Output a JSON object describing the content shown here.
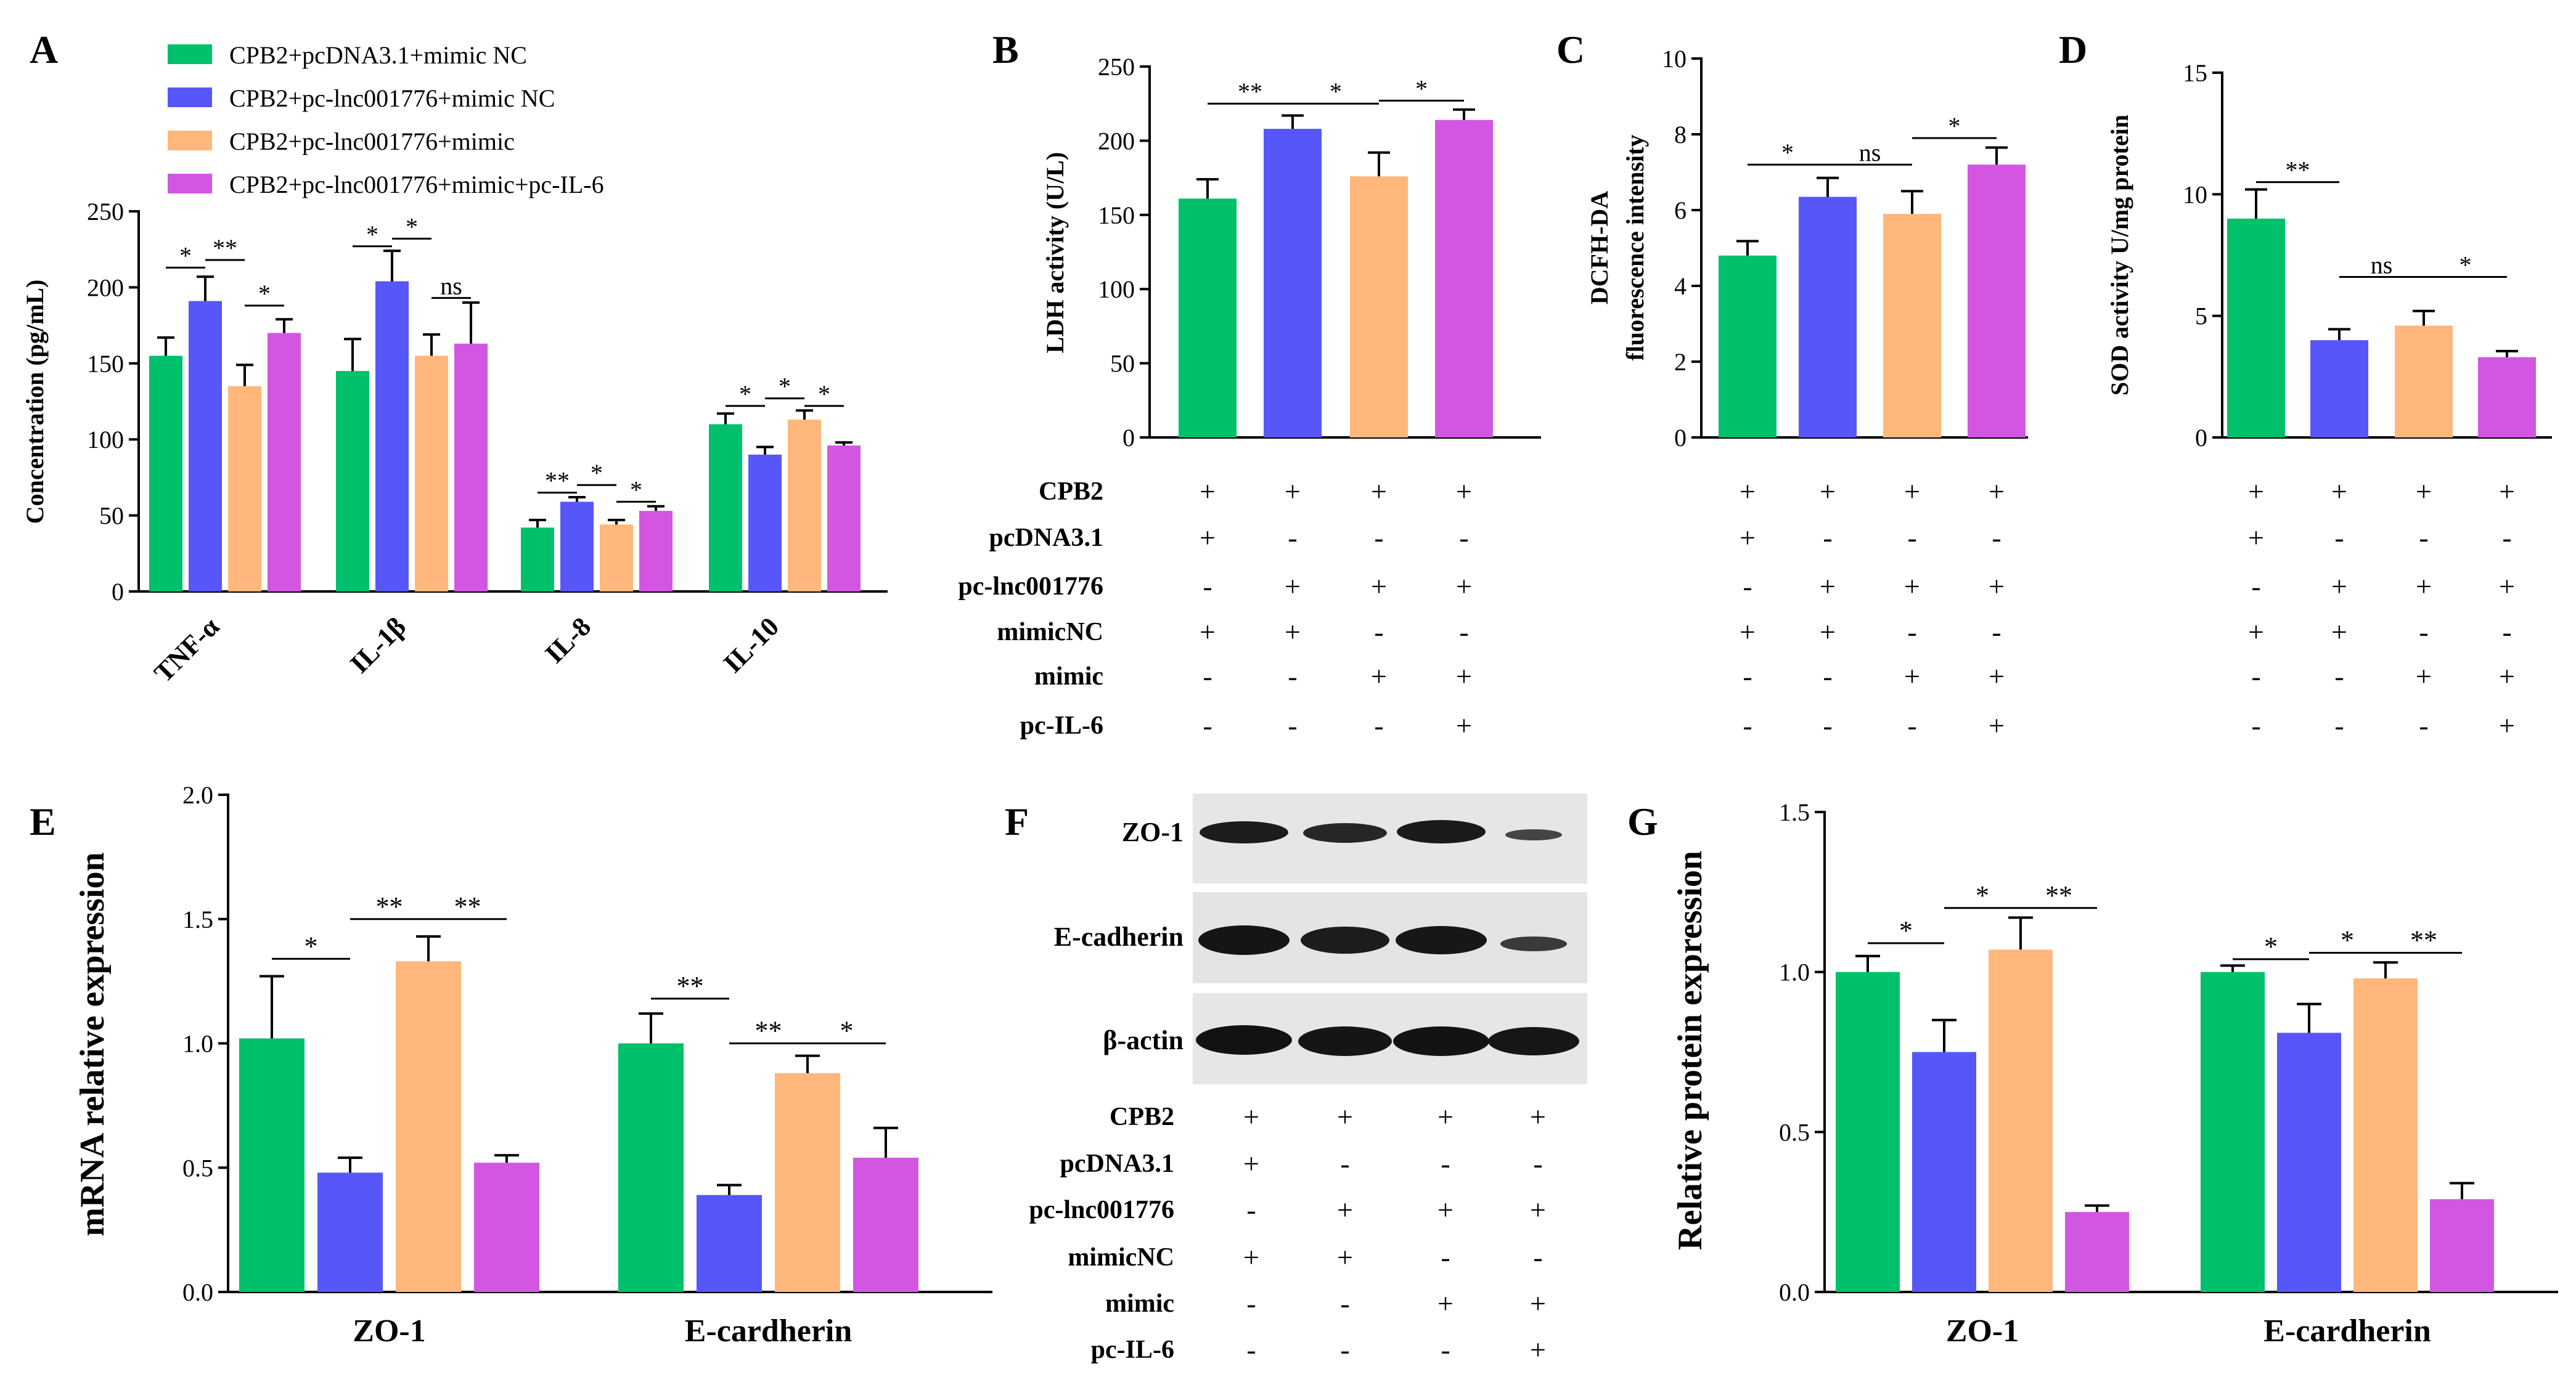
{
  "colors": [
    "#00c06b",
    "#5757f9",
    "#ffb77b",
    "#d356e3"
  ],
  "legend": [
    "CPB2+pcDNA3.1+mimic NC",
    "CPB2+pc-lnc001776+mimic NC",
    "CPB2+pc-lnc001776+mimic",
    "CPB2+pc-lnc001776+mimic+pc-IL-6"
  ],
  "treatment_rows": [
    "CPB2",
    "pcDNA3.1",
    "pc-lnc001776",
    "mimicNC",
    "mimic",
    "pc-IL-6"
  ],
  "treatment_signs": [
    [
      "+",
      "+",
      "+",
      "+"
    ],
    [
      "+",
      "-",
      "-",
      "-"
    ],
    [
      "-",
      "+",
      "+",
      "+"
    ],
    [
      "+",
      "+",
      "-",
      "-"
    ],
    [
      "-",
      "-",
      "+",
      "+"
    ],
    [
      "-",
      "-",
      "-",
      "+"
    ]
  ],
  "western_blot": {
    "label": "F",
    "bands": [
      "ZO-1",
      "E-cadherin",
      "β-actin"
    ]
  },
  "chart_data": [
    {
      "panel": "A",
      "type": "bar",
      "ylabel": "Concentration (pg/mL)",
      "ylim": [
        0,
        250
      ],
      "yticks": [
        0,
        50,
        100,
        150,
        200,
        250
      ],
      "categories": [
        "TNF-α",
        "IL-1β",
        "IL-8",
        "IL-10"
      ],
      "series": [
        {
          "name": "CPB2+pcDNA3.1+mimic NC",
          "values": [
            155,
            145,
            42,
            110
          ],
          "errors": [
            12,
            21,
            5,
            7
          ]
        },
        {
          "name": "CPB2+pc-lnc001776+mimic NC",
          "values": [
            191,
            204,
            59,
            90
          ],
          "errors": [
            16,
            20,
            3,
            5
          ]
        },
        {
          "name": "CPB2+pc-lnc001776+mimic",
          "values": [
            135,
            155,
            44,
            113
          ],
          "errors": [
            14,
            14,
            3,
            6
          ]
        },
        {
          "name": "CPB2+pc-lnc001776+mimic+pc-IL-6",
          "values": [
            170,
            163,
            53,
            96
          ],
          "errors": [
            9,
            27,
            3,
            2
          ]
        }
      ],
      "significance": [
        {
          "group": 0,
          "from": 0,
          "to": 1,
          "label": "*",
          "y": 213
        },
        {
          "group": 0,
          "from": 1,
          "to": 2,
          "label": "**",
          "y": 218
        },
        {
          "group": 0,
          "from": 2,
          "to": 3,
          "label": "*",
          "y": 188
        },
        {
          "group": 1,
          "from": 0,
          "to": 1,
          "label": "*",
          "y": 227
        },
        {
          "group": 1,
          "from": 1,
          "to": 2,
          "label": "*",
          "y": 232
        },
        {
          "group": 1,
          "from": 2,
          "to": 3,
          "label": "ns",
          "y": 193
        },
        {
          "group": 2,
          "from": 0,
          "to": 1,
          "label": "**",
          "y": 65
        },
        {
          "group": 2,
          "from": 1,
          "to": 2,
          "label": "*",
          "y": 70
        },
        {
          "group": 2,
          "from": 2,
          "to": 3,
          "label": "*",
          "y": 59
        },
        {
          "group": 3,
          "from": 0,
          "to": 1,
          "label": "*",
          "y": 122
        },
        {
          "group": 3,
          "from": 1,
          "to": 2,
          "label": "*",
          "y": 127
        },
        {
          "group": 3,
          "from": 2,
          "to": 3,
          "label": "*",
          "y": 122
        }
      ]
    },
    {
      "panel": "B",
      "type": "bar",
      "ylabel": "LDH activity (U/L)",
      "ylim": [
        0,
        250
      ],
      "yticks": [
        0,
        50,
        100,
        150,
        200,
        250
      ],
      "values": [
        161,
        208,
        176,
        214
      ],
      "errors": [
        13,
        9,
        16,
        7
      ],
      "significance": [
        {
          "from": 0,
          "to": 1,
          "label": "**",
          "y": 225
        },
        {
          "from": 1,
          "to": 2,
          "label": "*",
          "y": 225
        },
        {
          "from": 2,
          "to": 3,
          "label": "*",
          "y": 227
        }
      ]
    },
    {
      "panel": "C",
      "type": "bar",
      "ylabel": [
        "DCFH-DA",
        "fluorescence intensity"
      ],
      "ylim": [
        0,
        10
      ],
      "yticks": [
        0,
        2,
        4,
        6,
        8,
        10
      ],
      "values": [
        4.8,
        6.35,
        5.9,
        7.2
      ],
      "errors": [
        0.38,
        0.5,
        0.6,
        0.45
      ],
      "significance": [
        {
          "from": 0,
          "to": 1,
          "label": "*",
          "y": 7.2
        },
        {
          "from": 1,
          "to": 2,
          "label": "ns",
          "y": 7.2
        },
        {
          "from": 2,
          "to": 3,
          "label": "*",
          "y": 7.9
        }
      ]
    },
    {
      "panel": "D",
      "type": "bar",
      "ylabel": "SOD activity U/mg protein",
      "ylim": [
        0,
        15
      ],
      "yticks": [
        0,
        5,
        10,
        15
      ],
      "values": [
        9.0,
        4.0,
        4.6,
        3.3
      ],
      "errors": [
        1.2,
        0.45,
        0.6,
        0.25
      ],
      "significance": [
        {
          "from": 0,
          "to": 1,
          "label": "**",
          "y": 10.5
        },
        {
          "from": 1,
          "to": 2,
          "label": "ns",
          "y": 6.6
        },
        {
          "from": 2,
          "to": 3,
          "label": "*",
          "y": 6.6
        }
      ]
    },
    {
      "panel": "E",
      "type": "bar",
      "ylabel": "mRNA relative expression",
      "ylim": [
        0,
        2.0
      ],
      "yticks": [
        "0.0",
        "0.5",
        "1.0",
        "1.5",
        "2.0"
      ],
      "categories": [
        "ZO-1",
        "E-cardherin"
      ],
      "series": [
        {
          "values": [
            1.02,
            1.0
          ],
          "errors": [
            0.25,
            0.12
          ]
        },
        {
          "values": [
            0.48,
            0.39
          ],
          "errors": [
            0.06,
            0.04
          ]
        },
        {
          "values": [
            1.33,
            0.88
          ],
          "errors": [
            0.1,
            0.07
          ]
        },
        {
          "values": [
            0.52,
            0.54
          ],
          "errors": [
            0.03,
            0.12
          ]
        }
      ],
      "significance": [
        {
          "group": 0,
          "from": 0,
          "to": 1,
          "label": "*",
          "y": 1.34
        },
        {
          "group": 0,
          "from": 1,
          "to": 2,
          "label": "**",
          "y": 1.5
        },
        {
          "group": 0,
          "from": 2,
          "to": 3,
          "label": "**",
          "y": 1.5
        },
        {
          "group": 1,
          "from": 0,
          "to": 1,
          "label": "**",
          "y": 1.18
        },
        {
          "group": 1,
          "from": 1,
          "to": 2,
          "label": "**",
          "y": 1.0
        },
        {
          "group": 1,
          "from": 2,
          "to": 3,
          "label": "*",
          "y": 1.0
        }
      ]
    },
    {
      "panel": "G",
      "type": "bar",
      "ylabel": "Relative protein expression",
      "ylim": [
        0,
        1.5
      ],
      "yticks": [
        "0.0",
        "0.5",
        "1.0",
        "1.5"
      ],
      "categories": [
        "ZO-1",
        "E-cardherin"
      ],
      "series": [
        {
          "values": [
            1.0,
            1.0
          ],
          "errors": [
            0.05,
            0.02
          ]
        },
        {
          "values": [
            0.75,
            0.81
          ],
          "errors": [
            0.1,
            0.09
          ]
        },
        {
          "values": [
            1.07,
            0.98
          ],
          "errors": [
            0.1,
            0.05
          ]
        },
        {
          "values": [
            0.25,
            0.29
          ],
          "errors": [
            0.02,
            0.05
          ]
        }
      ],
      "significance": [
        {
          "group": 0,
          "from": 0,
          "to": 1,
          "label": "*",
          "y": 1.09
        },
        {
          "group": 0,
          "from": 1,
          "to": 2,
          "label": "*",
          "y": 1.2
        },
        {
          "group": 0,
          "from": 2,
          "to": 3,
          "label": "**",
          "y": 1.2
        },
        {
          "group": 1,
          "from": 0,
          "to": 1,
          "label": "*",
          "y": 1.04
        },
        {
          "group": 1,
          "from": 1,
          "to": 2,
          "label": "*",
          "y": 1.06
        },
        {
          "group": 1,
          "from": 2,
          "to": 3,
          "label": "**",
          "y": 1.06
        }
      ]
    }
  ]
}
